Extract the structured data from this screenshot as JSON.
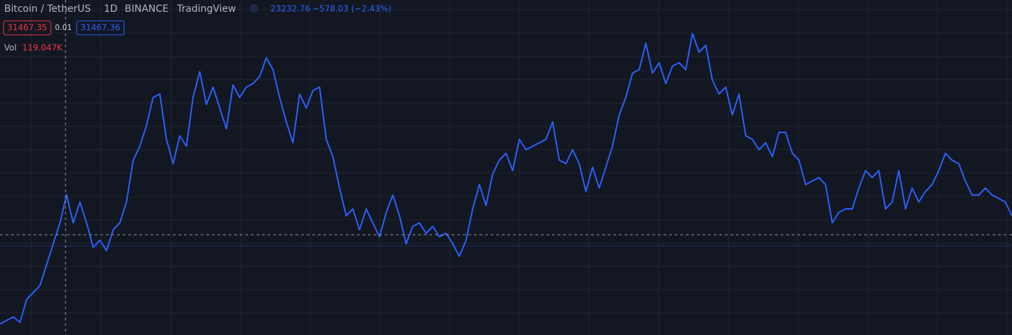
{
  "chart_data": {
    "type": "line",
    "title": "Bitcoin / TetherUS",
    "interval": "1D",
    "exchange": "BINANCE",
    "source": "TradingView",
    "last_price": "23232.76",
    "change": "−578.03 (−2.43%)",
    "crosshair_price": 31467.35,
    "spread": "0.01",
    "ask_price": "31467.36",
    "volume_label": "Vol",
    "volume_value": "119.047K",
    "ylim": [
      22830,
      51690
    ],
    "series": [
      {
        "color": "#2962ff",
        "values": [
          23790,
          24090,
          24390,
          23910,
          25890,
          26490,
          27090,
          28890,
          30690,
          32490,
          34890,
          32490,
          34290,
          32490,
          30390,
          30990,
          30090,
          31890,
          32490,
          34290,
          37890,
          39090,
          40890,
          43290,
          43590,
          39690,
          37590,
          39990,
          39090,
          43290,
          45510,
          42690,
          44190,
          42390,
          40590,
          44370,
          43290,
          44190,
          44490,
          45090,
          46710,
          45690,
          43290,
          41190,
          39390,
          43590,
          42390,
          43890,
          44190,
          39690,
          38190,
          35490,
          33090,
          33690,
          31890,
          33690,
          32490,
          31290,
          33390,
          34890,
          33090,
          30690,
          32190,
          32490,
          31590,
          32190,
          31290,
          31590,
          30690,
          29610,
          30990,
          33690,
          35790,
          33990,
          36690,
          37890,
          38490,
          36990,
          39690,
          38790,
          39090,
          39390,
          39690,
          41190,
          37890,
          37590,
          38790,
          37590,
          35190,
          37290,
          35490,
          37290,
          39090,
          41790,
          43290,
          45390,
          45690,
          47970,
          45390,
          46290,
          44490,
          45990,
          46290,
          45690,
          48810,
          47190,
          47790,
          44790,
          43590,
          44190,
          41790,
          43590,
          39990,
          39690,
          38790,
          39390,
          38190,
          40290,
          40290,
          38490,
          37890,
          35790,
          36090,
          36390,
          35790,
          32490,
          33390,
          33690,
          33690,
          35490,
          36990,
          36390,
          36990,
          33690,
          34290,
          36990,
          33690,
          35490,
          34290,
          35190,
          35790,
          36990,
          38490,
          37890,
          37590,
          36090,
          34890,
          34890,
          35490,
          34890,
          34590,
          34290,
          33090
        ]
      }
    ]
  }
}
